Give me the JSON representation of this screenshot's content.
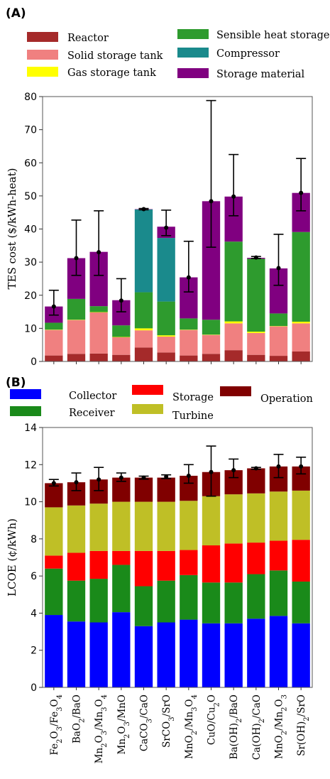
{
  "chart_data": [
    {
      "panel_label": "(A)",
      "type": "bar",
      "stacked": true,
      "xlabel": "",
      "ylabel": "TES cost ($/kWh-heat)",
      "ylim": [
        0,
        80
      ],
      "yticks": [
        0,
        10,
        20,
        30,
        40,
        50,
        60,
        70,
        80
      ],
      "grid": false,
      "legend_placement": "top",
      "categories": [
        "Fe2O3/Fe3O4",
        "BaO2/BaO",
        "Mn2O3/Mn3O4",
        "Mn2O3/MnO",
        "CaCO3/CaO",
        "SrCO3/SrO",
        "MnO2/Mn3O4",
        "CuO/Cu2O",
        "Ba(OH)2/BaO",
        "Ca(OH)2/CaO",
        "MnO2/Mn2O3",
        "Sr(OH)2/SrO"
      ],
      "legend": [
        {
          "name": "Reactor",
          "color": "#a52a2a"
        },
        {
          "name": "Solid storage tank",
          "color": "#f08080"
        },
        {
          "name": "Gas storage tank",
          "color": "#ffff00"
        },
        {
          "name": "Sensible heat storage",
          "color": "#2e9b2e"
        },
        {
          "name": "Compressor",
          "color": "#1a8a8c"
        },
        {
          "name": "Storage material",
          "color": "#800080"
        }
      ],
      "series": [
        {
          "name": "Reactor",
          "color": "#a52a2a",
          "values": [
            1.8,
            2.3,
            2.4,
            2.0,
            4.2,
            2.7,
            1.8,
            2.3,
            3.4,
            2.0,
            1.7,
            3.0
          ]
        },
        {
          "name": "Solid storage tank",
          "color": "#f08080",
          "values": [
            7.7,
            10.2,
            12.4,
            5.3,
            5.2,
            4.8,
            7.7,
            5.7,
            8.1,
            6.6,
            8.9,
            8.5
          ]
        },
        {
          "name": "Gas storage tank",
          "color": "#ffff00",
          "values": [
            0.1,
            0.1,
            0.1,
            0.1,
            0.6,
            0.4,
            0.1,
            0.1,
            0.6,
            0.4,
            0.1,
            0.5
          ]
        },
        {
          "name": "Sensible heat storage",
          "color": "#2e9b2e",
          "values": [
            2.1,
            6.3,
            1.8,
            3.5,
            10.9,
            10.2,
            3.4,
            4.5,
            24.1,
            22.0,
            3.8,
            27.1
          ]
        },
        {
          "name": "Compressor",
          "color": "#1a8a8c",
          "values": [
            0,
            0,
            0,
            0,
            25.0,
            19.2,
            0,
            0,
            0,
            0,
            0,
            0
          ]
        },
        {
          "name": "Storage material",
          "color": "#800080",
          "values": [
            4.9,
            12.3,
            16.4,
            7.6,
            0.1,
            3.4,
            12.4,
            35.8,
            13.6,
            0.3,
            13.6,
            11.8
          ]
        }
      ],
      "error_bars": {
        "center": [
          16.6,
          31.2,
          33.0,
          18.4,
          46.0,
          40.4,
          25.4,
          48.4,
          49.8,
          31.4,
          28.2,
          50.9
        ],
        "low": [
          14.0,
          26.0,
          26.0,
          15.0,
          45.8,
          38.0,
          21.0,
          34.5,
          44.0,
          31.1,
          23.0,
          45.5
        ],
        "high": [
          21.5,
          42.7,
          45.5,
          25.0,
          46.2,
          45.7,
          36.3,
          78.8,
          62.5,
          31.7,
          38.4,
          61.3
        ]
      }
    },
    {
      "panel_label": "(B)",
      "type": "bar",
      "stacked": true,
      "xlabel": "",
      "ylabel": "LCOE (¢/kWh)",
      "ylim": [
        0,
        14
      ],
      "yticks": [
        0,
        2,
        4,
        6,
        8,
        10,
        12,
        14
      ],
      "grid": false,
      "legend_placement": "top",
      "categories": [
        "Fe2O3/Fe3O4",
        "BaO2/BaO",
        "Mn2O3/Mn3O4",
        "Mn2O3/MnO",
        "CaCO3/CaO",
        "SrCO3/SrO",
        "MnO2/Mn3O4",
        "CuO/Cu2O",
        "Ba(OH)2/BaO",
        "Ca(OH)2/CaO",
        "MnO2/Mn2O3",
        "Sr(OH)2/SrO"
      ],
      "legend": [
        {
          "name": "Collector",
          "color": "#0000ff"
        },
        {
          "name": "Storage",
          "color": "#ff0000"
        },
        {
          "name": "Operation",
          "color": "#800000"
        },
        {
          "name": "Receiver",
          "color": "#1a8a1a"
        },
        {
          "name": "Turbine",
          "color": "#bfbf26"
        }
      ],
      "series": [
        {
          "name": "Collector",
          "color": "#0000ff",
          "values": [
            3.9,
            3.55,
            3.5,
            4.05,
            3.3,
            3.5,
            3.65,
            3.45,
            3.45,
            3.7,
            3.85,
            3.45
          ]
        },
        {
          "name": "Receiver",
          "color": "#1a8a1a",
          "values": [
            2.5,
            2.2,
            2.35,
            2.55,
            2.15,
            2.25,
            2.4,
            2.2,
            2.2,
            2.4,
            2.45,
            2.25
          ]
        },
        {
          "name": "Storage",
          "color": "#ff0000",
          "values": [
            0.7,
            1.5,
            1.5,
            0.75,
            1.9,
            1.6,
            1.35,
            2.0,
            2.1,
            1.7,
            1.6,
            2.25
          ]
        },
        {
          "name": "Turbine",
          "color": "#bfbf26",
          "values": [
            2.6,
            2.55,
            2.55,
            2.65,
            2.65,
            2.65,
            2.65,
            2.65,
            2.65,
            2.65,
            2.65,
            2.65
          ]
        },
        {
          "name": "Operation",
          "color": "#800000",
          "values": [
            1.3,
            1.25,
            1.3,
            1.3,
            1.3,
            1.3,
            1.35,
            1.3,
            1.3,
            1.35,
            1.35,
            1.3
          ]
        }
      ],
      "error_bars": {
        "center": [
          11.0,
          11.05,
          11.2,
          11.3,
          11.3,
          11.35,
          11.4,
          11.6,
          11.7,
          11.8,
          11.9,
          11.9
        ],
        "low": [
          10.85,
          10.6,
          10.6,
          11.1,
          11.22,
          11.25,
          11.0,
          10.3,
          11.3,
          11.75,
          11.3,
          11.5
        ],
        "high": [
          11.2,
          11.55,
          11.85,
          11.55,
          11.38,
          11.45,
          12.0,
          13.0,
          12.3,
          11.85,
          12.55,
          12.4
        ]
      }
    }
  ]
}
